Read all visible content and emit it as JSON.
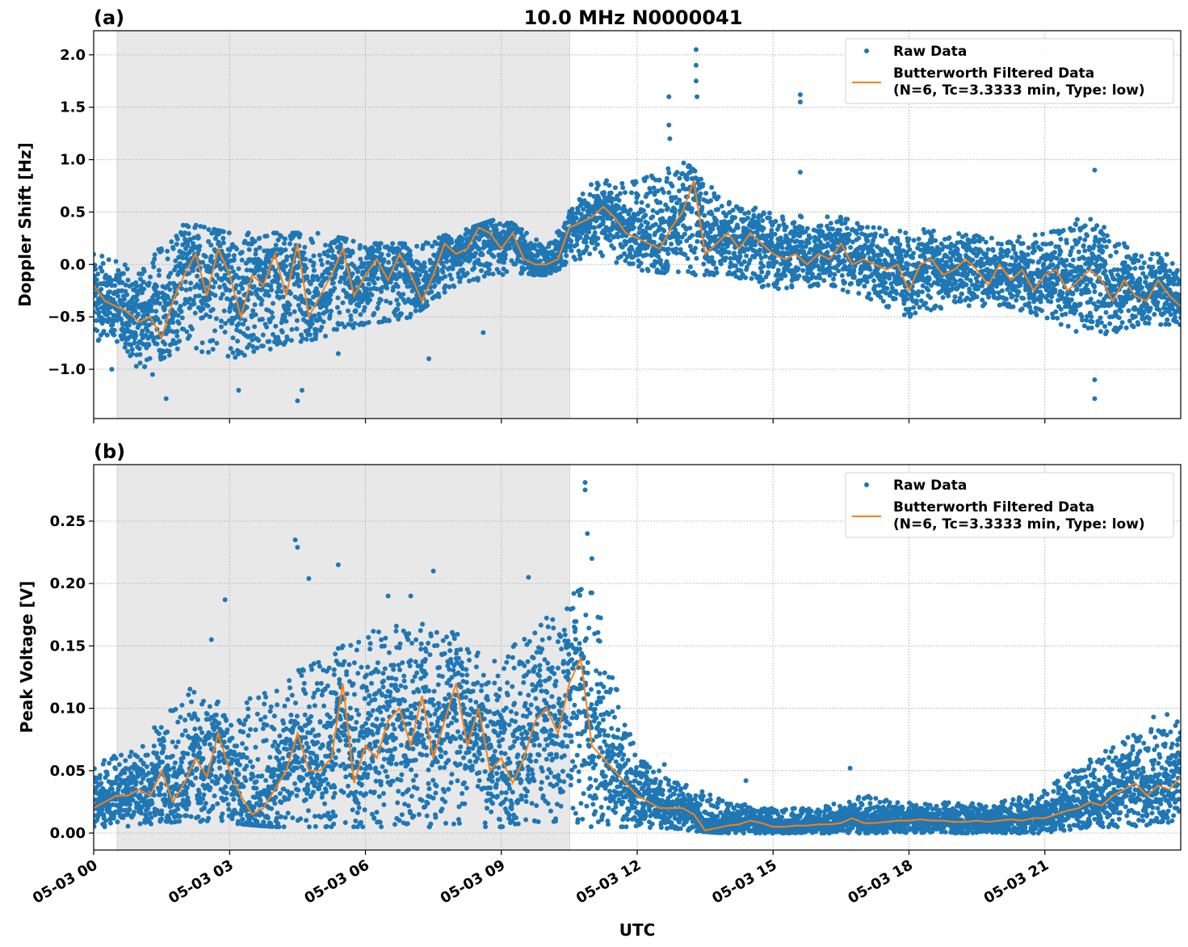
{
  "title": "10.0 MHz N0000041",
  "xlabel": "UTC",
  "colors": {
    "raw": "#1f77b4",
    "filtered": "#ff7f0e",
    "shade": "#e8e8e8",
    "grid": "#b0b0b0"
  },
  "x_ticks": [
    "05-03 00",
    "05-03 03",
    "05-03 06",
    "05-03 09",
    "05-03 12",
    "05-03 15",
    "05-03 18",
    "05-03 21"
  ],
  "x_tick_hours": [
    0,
    3,
    6,
    9,
    12,
    15,
    18,
    21
  ],
  "xlim_hours": [
    0,
    24
  ],
  "shaded_interval_hours": [
    0.52,
    10.51
  ],
  "legend": {
    "raw": "Raw Data",
    "filtered_line1": "Butterworth Filtered Data",
    "filtered_line2": "(N=6, Tc=3.3333 min, Type: low)",
    "placement": "upper right"
  },
  "chart_data": [
    {
      "type": "scatter+line",
      "panel_label": "(a)",
      "ylabel": "Doppler Shift [Hz]",
      "ylim": [
        -1.47,
        2.23
      ],
      "y_ticks": [
        -1.0,
        -0.5,
        0.0,
        0.5,
        1.0,
        1.5,
        2.0
      ],
      "y_tick_labels": [
        "−1.0",
        "−0.5",
        "0.0",
        "0.5",
        "1.0",
        "1.5",
        "2.0"
      ],
      "grid": true,
      "filtered": {
        "name": "Butterworth Filtered Data",
        "step_hours": 0.25,
        "values": [
          -0.2,
          -0.35,
          -0.4,
          -0.45,
          -0.55,
          -0.5,
          -0.7,
          -0.35,
          -0.1,
          0.1,
          -0.3,
          0.15,
          -0.1,
          -0.5,
          -0.1,
          -0.2,
          0.1,
          -0.3,
          0.2,
          -0.5,
          -0.3,
          -0.1,
          0.15,
          -0.3,
          -0.1,
          0.05,
          -0.15,
          0.1,
          -0.1,
          -0.35,
          -0.1,
          0.2,
          0.1,
          0.15,
          0.35,
          0.3,
          0.15,
          0.3,
          0.05,
          0.0,
          0.0,
          0.05,
          0.35,
          0.4,
          0.45,
          0.55,
          0.45,
          0.3,
          0.25,
          0.2,
          0.15,
          0.35,
          0.5,
          0.8,
          0.1,
          0.2,
          0.3,
          0.15,
          0.3,
          0.2,
          0.1,
          0.05,
          0.1,
          0.0,
          0.1,
          0.05,
          0.2,
          0.0,
          0.05,
          0.0,
          -0.05,
          0.0,
          -0.25,
          0.0,
          0.05,
          -0.1,
          -0.05,
          0.05,
          -0.05,
          -0.2,
          0.0,
          -0.15,
          -0.05,
          -0.25,
          -0.1,
          -0.05,
          -0.25,
          -0.15,
          -0.05,
          -0.15,
          -0.35,
          -0.15,
          -0.3,
          -0.35,
          -0.15,
          -0.3,
          -0.4
        ]
      },
      "raw": {
        "name": "Raw Data",
        "envelope_step_hours": 1,
        "low": [
          -0.7,
          -1.0,
          -0.8,
          -0.9,
          -0.8,
          -0.7,
          -0.6,
          -0.5,
          -0.2,
          -0.1,
          -0.1,
          0.1,
          -0.05,
          -0.1,
          -0.1,
          -0.25,
          -0.2,
          -0.3,
          -0.5,
          -0.4,
          -0.4,
          -0.5,
          -0.7,
          -0.6,
          -0.6
        ],
        "high": [
          0.1,
          0.0,
          0.4,
          0.3,
          0.3,
          0.3,
          0.2,
          0.2,
          0.3,
          0.45,
          0.2,
          0.8,
          0.8,
          1.0,
          0.6,
          0.5,
          0.5,
          0.4,
          0.35,
          0.3,
          0.25,
          0.3,
          0.5,
          0.1,
          0.1
        ],
        "outliers": [
          [
            13.3,
            2.05
          ],
          [
            13.3,
            1.9
          ],
          [
            13.3,
            1.75
          ],
          [
            13.32,
            1.6
          ],
          [
            12.7,
            1.6
          ],
          [
            12.7,
            1.33
          ],
          [
            12.72,
            1.2
          ],
          [
            15.6,
            1.62
          ],
          [
            15.6,
            1.55
          ],
          [
            15.6,
            0.88
          ],
          [
            22.1,
            0.9
          ],
          [
            22.1,
            -1.28
          ],
          [
            22.1,
            -1.1
          ],
          [
            1.6,
            -1.28
          ],
          [
            4.5,
            -1.3
          ],
          [
            4.6,
            -1.2
          ],
          [
            3.2,
            -1.2
          ],
          [
            1.3,
            -1.05
          ],
          [
            7.4,
            -0.9
          ],
          [
            5.4,
            -0.85
          ],
          [
            8.6,
            -0.65
          ],
          [
            0.4,
            -1.0
          ]
        ]
      }
    },
    {
      "type": "scatter+line",
      "panel_label": "(b)",
      "ylabel": "Peak Voltage [V]",
      "ylim": [
        -0.0136,
        0.2953
      ],
      "y_ticks": [
        0.0,
        0.05,
        0.1,
        0.15,
        0.2,
        0.25
      ],
      "y_tick_labels": [
        "0.00",
        "0.05",
        "0.10",
        "0.15",
        "0.20",
        "0.25"
      ],
      "grid": true,
      "filtered": {
        "name": "Butterworth Filtered Data",
        "step_hours": 0.25,
        "values": [
          0.02,
          0.025,
          0.03,
          0.03,
          0.035,
          0.03,
          0.05,
          0.025,
          0.04,
          0.06,
          0.045,
          0.08,
          0.05,
          0.03,
          0.015,
          0.02,
          0.035,
          0.05,
          0.08,
          0.05,
          0.05,
          0.06,
          0.12,
          0.04,
          0.07,
          0.06,
          0.09,
          0.1,
          0.07,
          0.11,
          0.06,
          0.09,
          0.12,
          0.07,
          0.1,
          0.05,
          0.06,
          0.04,
          0.06,
          0.09,
          0.1,
          0.08,
          0.12,
          0.14,
          0.07,
          0.06,
          0.05,
          0.04,
          0.03,
          0.025,
          0.02,
          0.02,
          0.02,
          0.015,
          0.002,
          0.004,
          0.006,
          0.007,
          0.01,
          0.008,
          0.005,
          0.005,
          0.006,
          0.006,
          0.007,
          0.007,
          0.008,
          0.012,
          0.008,
          0.008,
          0.009,
          0.01,
          0.01,
          0.011,
          0.01,
          0.01,
          0.009,
          0.009,
          0.01,
          0.009,
          0.01,
          0.011,
          0.01,
          0.012,
          0.012,
          0.015,
          0.018,
          0.02,
          0.025,
          0.022,
          0.03,
          0.035,
          0.04,
          0.03,
          0.038,
          0.035,
          0.045
        ]
      },
      "raw": {
        "name": "Raw Data",
        "envelope_step_hours": 1,
        "low": [
          0.005,
          0.005,
          0.01,
          0.008,
          0.005,
          0.005,
          0.005,
          0.005,
          0.005,
          0.005,
          0.01,
          0.005,
          0.005,
          0.002,
          0.0,
          0.0,
          0.0,
          0.0,
          0.0,
          0.0,
          0.0,
          0.0,
          0.005,
          0.005,
          0.01
        ],
        "high": [
          0.055,
          0.07,
          0.12,
          0.1,
          0.12,
          0.14,
          0.16,
          0.17,
          0.16,
          0.14,
          0.18,
          0.2,
          0.06,
          0.04,
          0.025,
          0.02,
          0.02,
          0.03,
          0.025,
          0.025,
          0.025,
          0.035,
          0.06,
          0.08,
          0.09
        ],
        "outliers": [
          [
            10.85,
            0.281
          ],
          [
            10.85,
            0.275
          ],
          [
            4.45,
            0.235
          ],
          [
            4.5,
            0.229
          ],
          [
            5.4,
            0.215
          ],
          [
            4.75,
            0.204
          ],
          [
            7.5,
            0.21
          ],
          [
            7.0,
            0.19
          ],
          [
            6.5,
            0.19
          ],
          [
            2.9,
            0.187
          ],
          [
            2.6,
            0.155
          ],
          [
            10.9,
            0.24
          ],
          [
            11.0,
            0.22
          ],
          [
            9.6,
            0.205
          ],
          [
            12.6,
            0.055
          ],
          [
            14.4,
            0.042
          ],
          [
            16.7,
            0.052
          ],
          [
            23.7,
            0.095
          ],
          [
            23.4,
            0.093
          ]
        ]
      }
    }
  ]
}
